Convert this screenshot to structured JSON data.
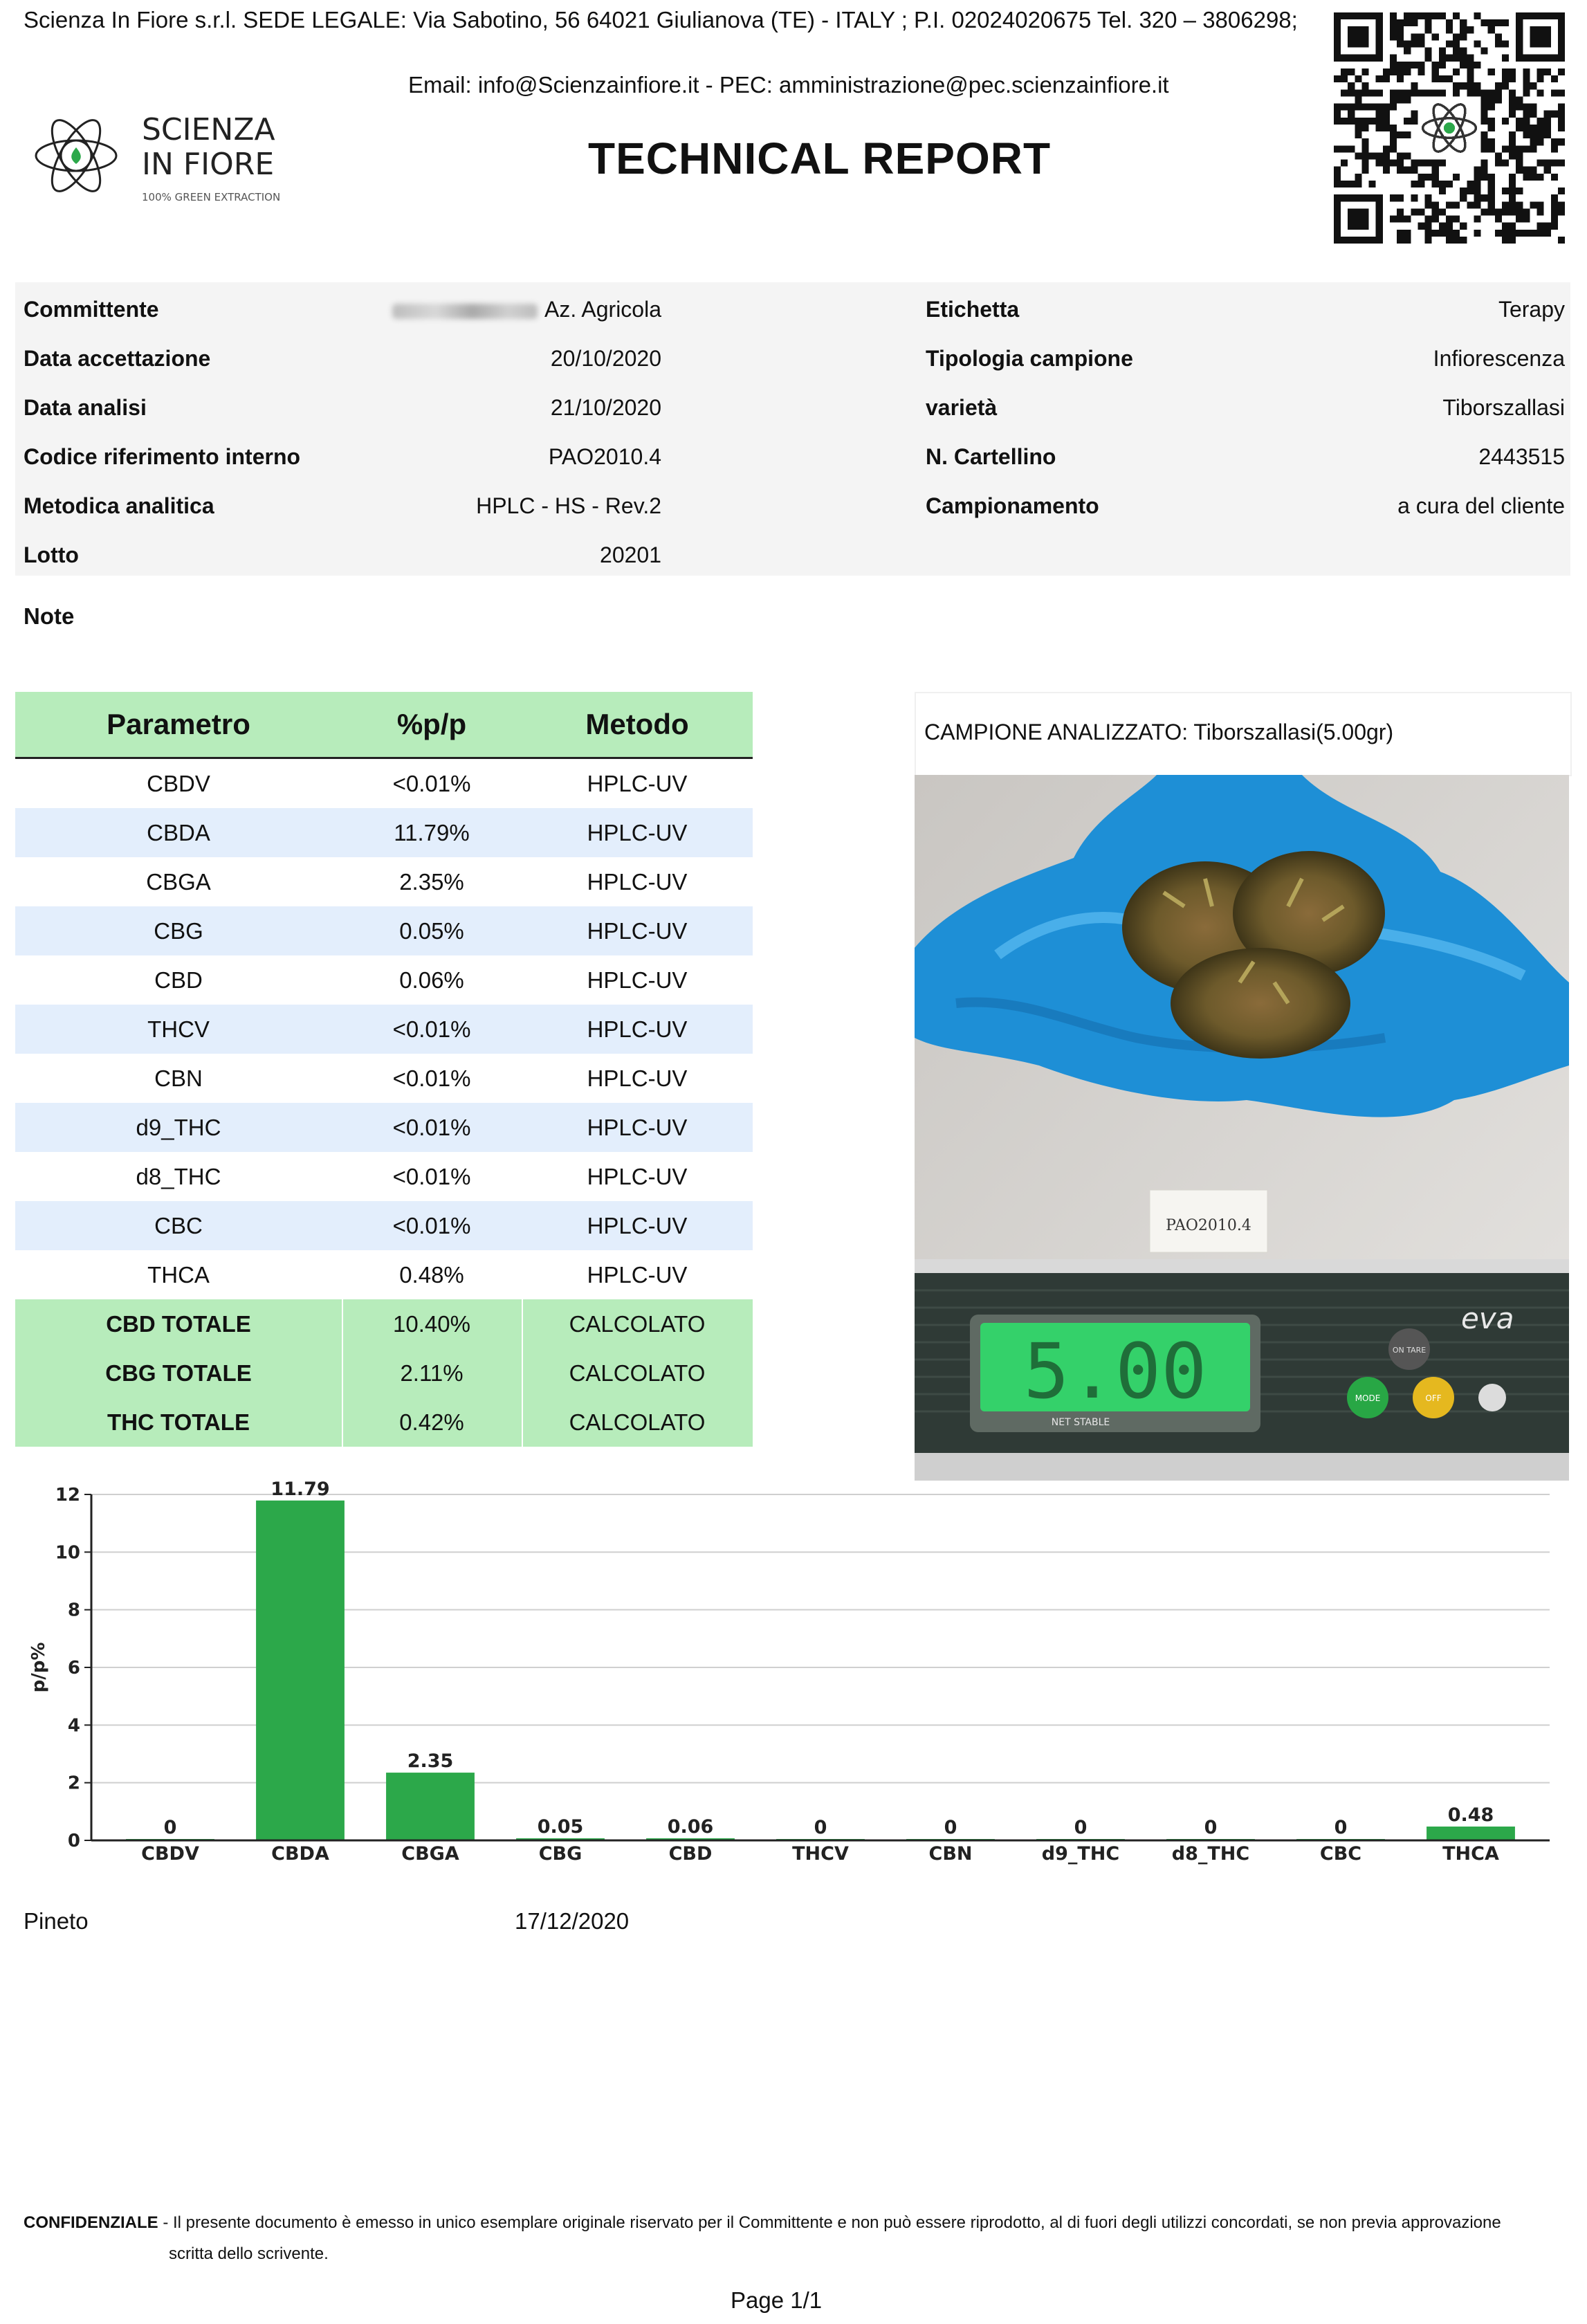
{
  "header": {
    "company_line": "Scienza In Fiore s.r.l. SEDE LEGALE: Via Sabotino, 56 64021 Giulianova (TE) - ITALY ; P.I. 02024020675 Tel. 320 – 3806298;",
    "email_line": "Email: info@Scienzainfiore.it - PEC: amministrazione@pec.scienzainfiore.it",
    "title": "TECHNICAL REPORT",
    "logo_line1": "SCIENZA",
    "logo_line2": "IN FIORE",
    "logo_tagline": "100% GREEN EXTRACTION"
  },
  "info": {
    "left": [
      {
        "label": "Committente",
        "value": "Az. Agricola"
      },
      {
        "label": "Data accettazione",
        "value": "20/10/2020"
      },
      {
        "label": "Data analisi",
        "value": "21/10/2020"
      },
      {
        "label": "Codice riferimento interno",
        "value": "PAO2010.4"
      },
      {
        "label": "Metodica analitica",
        "value": "HPLC - HS - Rev.2"
      },
      {
        "label": "Lotto",
        "value": "20201"
      }
    ],
    "right": [
      {
        "label": "Etichetta",
        "value": "Terapy"
      },
      {
        "label": "Tipologia campione",
        "value": "Infiorescenza"
      },
      {
        "label": "varietà",
        "value": "Tiborszallasi"
      },
      {
        "label": "N. Cartellino",
        "value": "2443515"
      },
      {
        "label": "Campionamento",
        "value": "a cura del cliente"
      }
    ],
    "note_label": "Note"
  },
  "results": {
    "headers": [
      "Parametro",
      "%p/p",
      "Metodo"
    ],
    "rows": [
      {
        "param": "CBDV",
        "value": "<0.01%",
        "method": "HPLC-UV"
      },
      {
        "param": "CBDA",
        "value": "11.79%",
        "method": "HPLC-UV"
      },
      {
        "param": "CBGA",
        "value": "2.35%",
        "method": "HPLC-UV"
      },
      {
        "param": "CBG",
        "value": "0.05%",
        "method": "HPLC-UV"
      },
      {
        "param": "CBD",
        "value": "0.06%",
        "method": "HPLC-UV"
      },
      {
        "param": "THCV",
        "value": "<0.01%",
        "method": "HPLC-UV"
      },
      {
        "param": "CBN",
        "value": "<0.01%",
        "method": "HPLC-UV"
      },
      {
        "param": "d9_THC",
        "value": "<0.01%",
        "method": "HPLC-UV"
      },
      {
        "param": "d8_THC",
        "value": "<0.01%",
        "method": "HPLC-UV"
      },
      {
        "param": "CBC",
        "value": "<0.01%",
        "method": "HPLC-UV"
      },
      {
        "param": "THCA",
        "value": "0.48%",
        "method": "HPLC-UV"
      }
    ],
    "totals": [
      {
        "param": "CBD TOTALE",
        "value": "10.40%",
        "method": "CALCOLATO"
      },
      {
        "param": "CBG TOTALE",
        "value": "2.11%",
        "method": "CALCOLATO"
      },
      {
        "param": "THC TOTALE",
        "value": "0.42%",
        "method": "CALCOLATO"
      }
    ]
  },
  "sample": {
    "caption": "CAMPIONE ANALIZZATO: Tiborszallasi(5.00gr)",
    "label_tag": "PAO2010.4",
    "scale_brand": "eva",
    "scale_buttons": [
      "ON TARE",
      "MODE",
      "OFF"
    ],
    "scale_screen_text": "NET STABLE"
  },
  "chart_data": {
    "type": "bar",
    "categories": [
      "CBDV",
      "CBDA",
      "CBGA",
      "CBG",
      "CBD",
      "THCV",
      "CBN",
      "d9_THC",
      "d8_THC",
      "CBC",
      "THCA"
    ],
    "values": [
      0,
      11.79,
      2.35,
      0.05,
      0.06,
      0,
      0,
      0,
      0,
      0,
      0.48
    ],
    "value_labels": [
      "0",
      "11.79",
      "2.35",
      "0.05",
      "0.06",
      "0",
      "0",
      "0",
      "0",
      "0",
      "0.48"
    ],
    "ylabel": "p/p%",
    "ylim": [
      0,
      12
    ],
    "yticks": [
      0,
      2,
      4,
      6,
      8,
      10,
      12
    ],
    "grid": true,
    "bar_color": "#2ca84a"
  },
  "footer": {
    "place": "Pineto",
    "date": "17/12/2020",
    "conf_label": "CONFIDENZIALE",
    "conf_text": " - Il presente documento è emesso in unico esemplare originale riservato per il Committente e non può essere riprodotto, al di fuori degli utilizzi concordati, se non previa approvazione",
    "conf_text2": "scritta dello scrivente.",
    "page": "Page 1/1"
  }
}
